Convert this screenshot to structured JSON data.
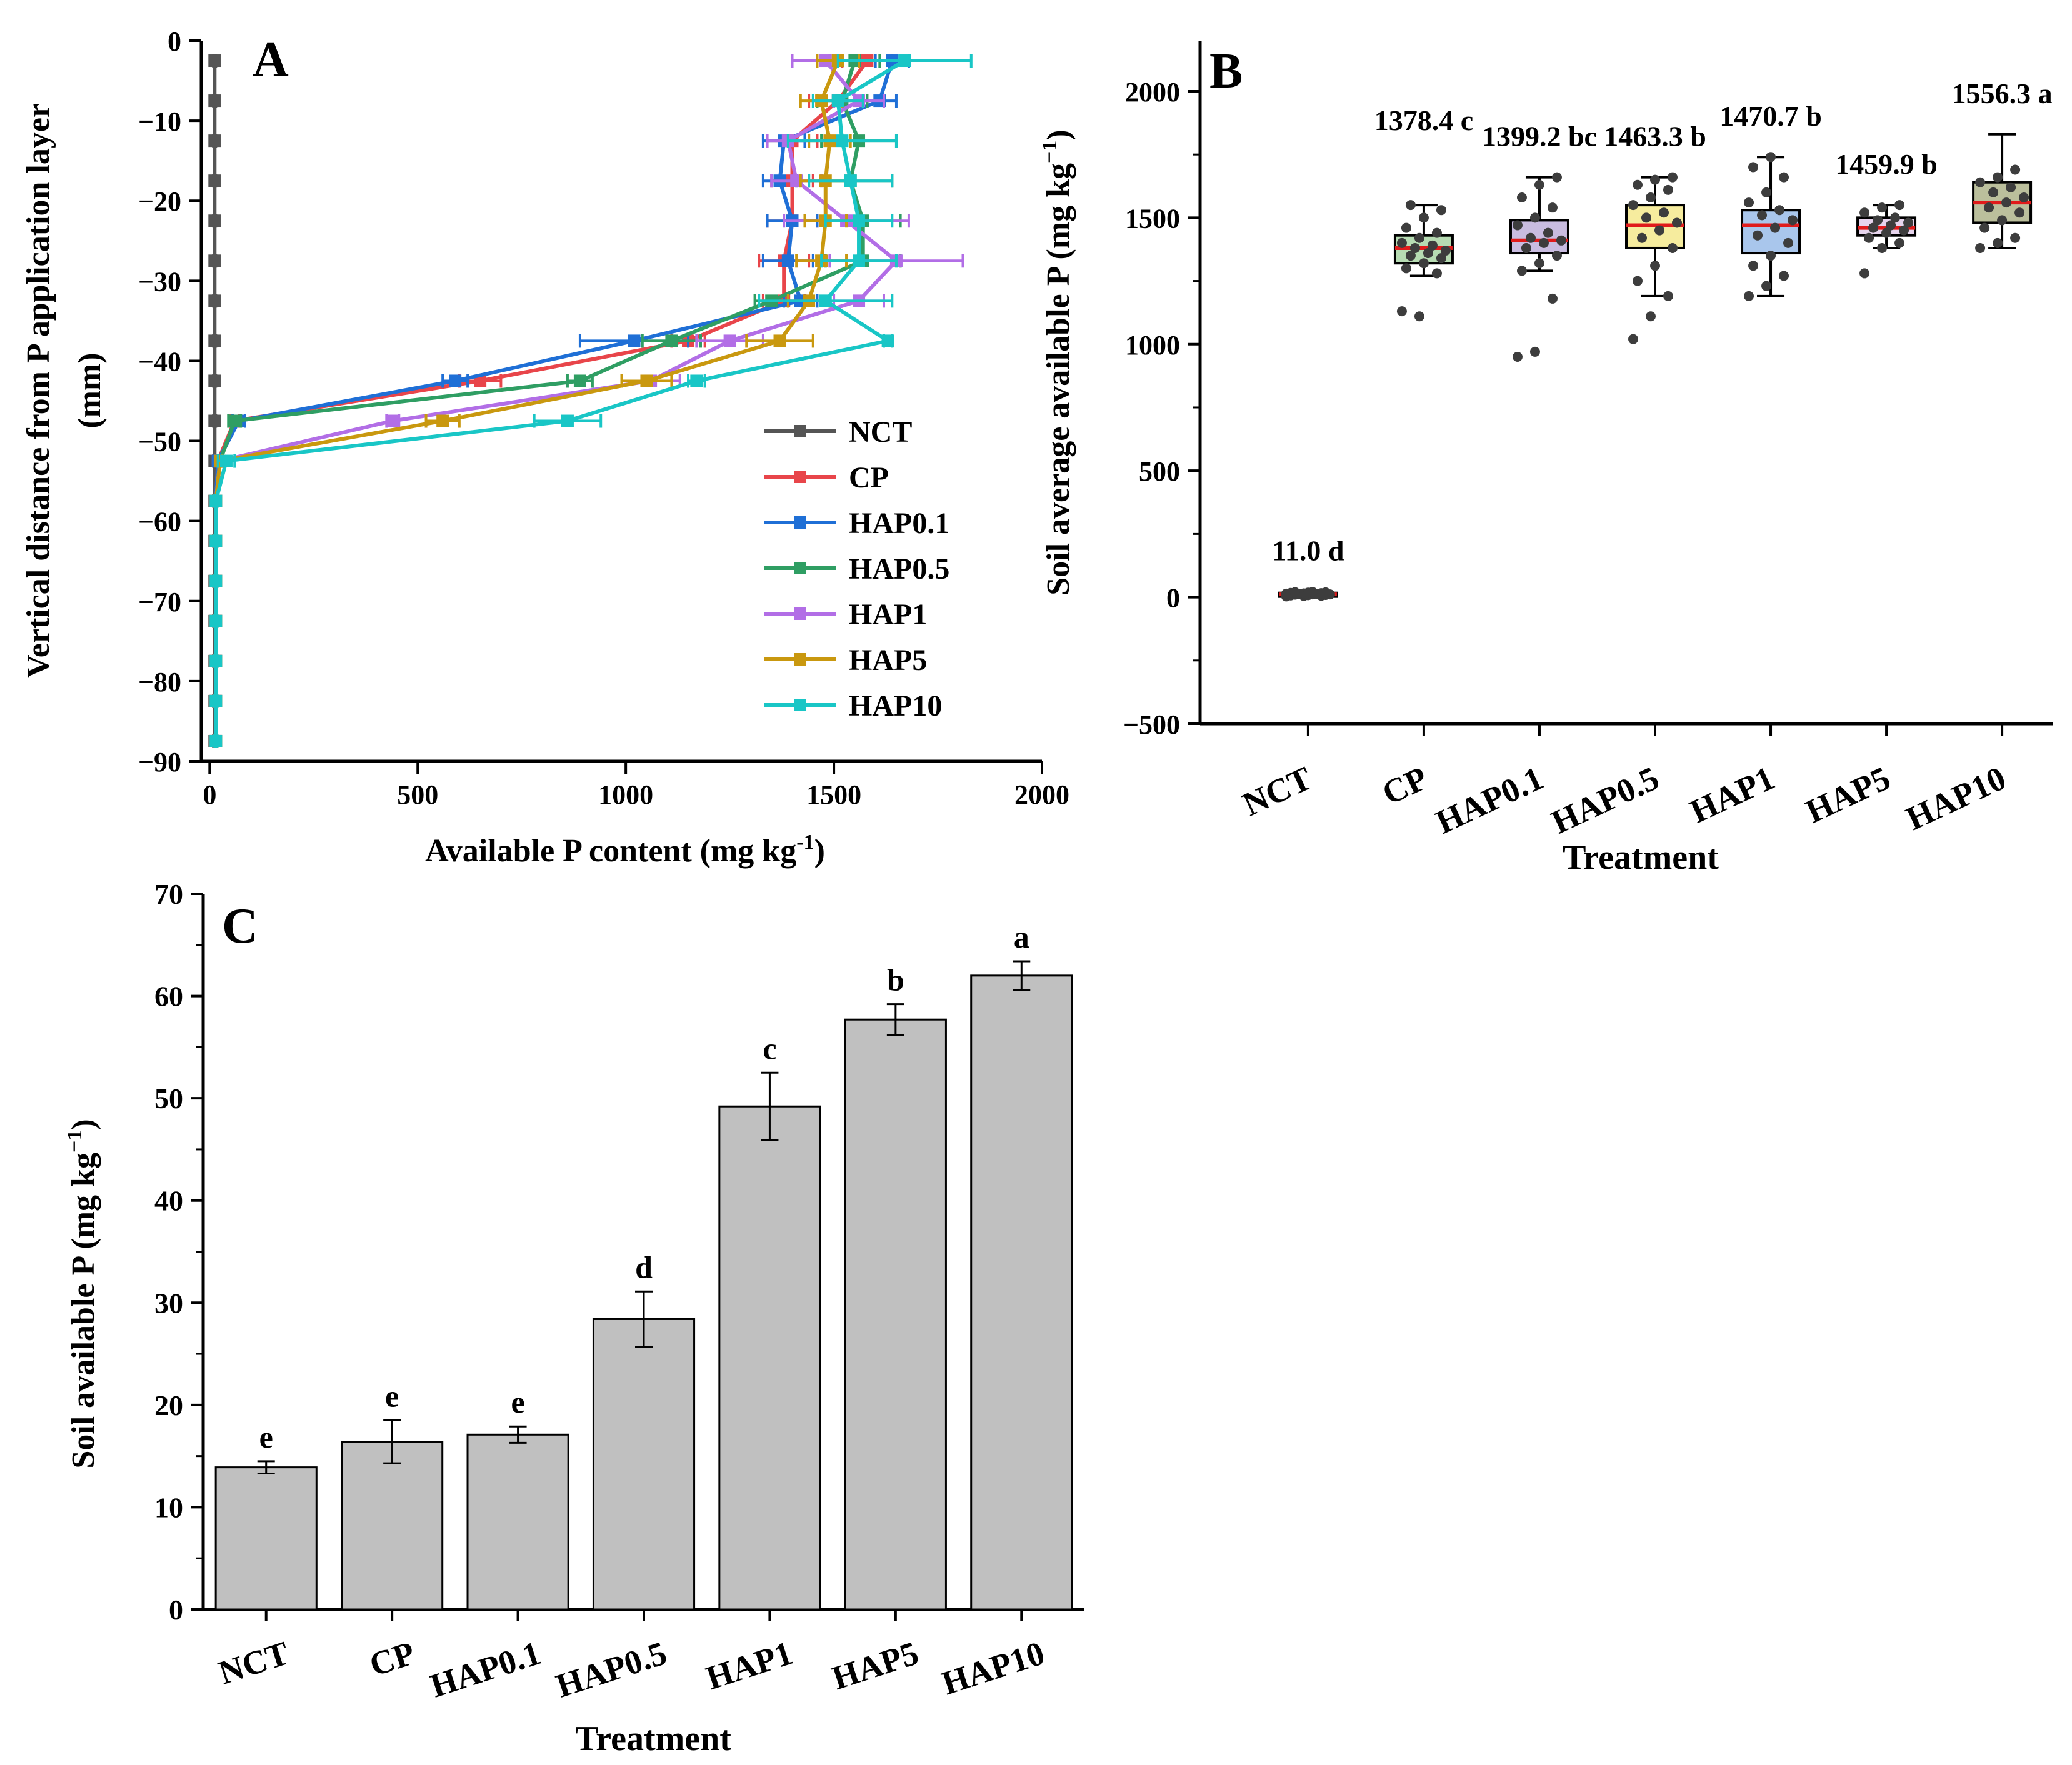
{
  "colors": {
    "NCT": "#555555",
    "CP": "#e8454a",
    "HAP0.1": "#1f6fd6",
    "HAP0.5": "#2f9e63",
    "HAP1": "#b26ee6",
    "HAP5": "#c9980f",
    "HAP10": "#19c6c6",
    "bar": "#c0c0c0",
    "median": "#e01b1b",
    "point": "#3d3d3d"
  },
  "chart_data": [
    {
      "panel": "A",
      "type": "line",
      "title": "",
      "xlabel": "Available P content (mg kg-1)",
      "xlabel_main": "Available P content (mg kg",
      "xlabel_sup": "-1",
      "xlabel_close": ")",
      "ylabel_line1": "Vertical distance from P application layer",
      "ylabel_line2": "(mm)",
      "xlim": [
        -20,
        2000
      ],
      "ylim": [
        -90,
        0
      ],
      "xticks": [
        0,
        500,
        1000,
        1500,
        2000
      ],
      "yticks": [
        0,
        -10,
        -20,
        -30,
        -40,
        -50,
        -60,
        -70,
        -80,
        -90
      ],
      "legend_position": "bottom-right",
      "depths": [
        -2.5,
        -7.5,
        -12.5,
        -17.5,
        -22.5,
        -27.5,
        -32.5,
        -37.5,
        -42.5,
        -47.5,
        -52.5,
        -57.5,
        -62.5,
        -67.5,
        -72.5,
        -77.5,
        -82.5,
        -87.5
      ],
      "series": [
        {
          "name": "NCT",
          "values": [
            12,
            12,
            12,
            12,
            12,
            12,
            12,
            12,
            12,
            12,
            12,
            12,
            12,
            12,
            12,
            12,
            12,
            12
          ],
          "errors": [
            3,
            3,
            3,
            3,
            3,
            3,
            3,
            3,
            3,
            3,
            3,
            3,
            3,
            3,
            3,
            3,
            3,
            3
          ]
        },
        {
          "name": "CP",
          "values": [
            1580,
            1510,
            1400,
            1400,
            1400,
            1380,
            1380,
            1150,
            650,
            60,
            20,
            15,
            15,
            15,
            15,
            15,
            15,
            15
          ],
          "errors": [
            60,
            70,
            60,
            50,
            60,
            60,
            50,
            40,
            50,
            10,
            5,
            3,
            3,
            3,
            3,
            3,
            3,
            3
          ]
        },
        {
          "name": "HAP0.1",
          "values": [
            1640,
            1610,
            1380,
            1370,
            1400,
            1390,
            1420,
            1020,
            590,
            70,
            20,
            15,
            15,
            15,
            15,
            15,
            15,
            15
          ],
          "errors": [
            40,
            40,
            50,
            40,
            60,
            60,
            40,
            130,
            30,
            15,
            5,
            3,
            3,
            3,
            3,
            3,
            3,
            3
          ]
        },
        {
          "name": "HAP0.5",
          "values": [
            1550,
            1520,
            1560,
            1540,
            1570,
            1570,
            1350,
            1110,
            890,
            60,
            25,
            15,
            15,
            15,
            15,
            15,
            15,
            15
          ],
          "errors": [
            60,
            60,
            90,
            100,
            90,
            90,
            40,
            70,
            30,
            15,
            5,
            3,
            3,
            3,
            3,
            3,
            3,
            3
          ]
        },
        {
          "name": "HAP1",
          "values": [
            1480,
            1560,
            1390,
            1410,
            1530,
            1650,
            1560,
            1250,
            1060,
            440,
            25,
            15,
            15,
            15,
            15,
            15,
            15,
            15
          ],
          "errors": [
            80,
            60,
            50,
            60,
            150,
            160,
            60,
            80,
            70,
            15,
            5,
            3,
            3,
            3,
            3,
            3,
            3,
            3
          ]
        },
        {
          "name": "HAP5",
          "values": [
            1510,
            1470,
            1490,
            1480,
            1480,
            1470,
            1440,
            1370,
            1050,
            560,
            25,
            15,
            15,
            15,
            15,
            15,
            15,
            15
          ],
          "errors": [
            50,
            50,
            50,
            60,
            50,
            60,
            50,
            80,
            60,
            40,
            5,
            3,
            3,
            3,
            3,
            3,
            3,
            3
          ]
        },
        {
          "name": "HAP10",
          "values": [
            1670,
            1510,
            1520,
            1540,
            1560,
            1560,
            1480,
            1630,
            1170,
            860,
            40,
            15,
            15,
            15,
            15,
            15,
            15,
            15
          ],
          "errors": [
            160,
            60,
            130,
            100,
            80,
            90,
            160,
            10,
            20,
            80,
            20,
            3,
            3,
            3,
            3,
            3,
            3,
            3
          ]
        }
      ],
      "panel_label": "A"
    },
    {
      "panel": "B",
      "type": "box",
      "title": "",
      "xlabel": "Treatment",
      "ylabel_main": "Soil average available P  (mg kg",
      "ylabel_sup": "−1",
      "ylabel_close": ")",
      "ylim": [
        -500,
        2200
      ],
      "yticks": [
        -500,
        0,
        500,
        1000,
        1500,
        2000
      ],
      "categories": [
        "NCT",
        "CP",
        "HAP0.1",
        "HAP0.5",
        "HAP1",
        "HAP5",
        "HAP10"
      ],
      "box_colors": [
        "#e8454a",
        "#b6dbb2",
        "#c9bce0",
        "#f6ec9e",
        "#a9c6ec",
        "#e6d4ec",
        "#bbbf9c"
      ],
      "boxes": [
        {
          "q1": 5,
          "median": 11,
          "mean": 11,
          "q3": 17,
          "min": 2,
          "max": 22,
          "points": [
            3,
            5,
            6,
            7,
            8,
            9,
            10,
            11,
            11,
            12,
            13,
            14,
            15,
            16,
            17,
            18,
            19,
            20,
            21
          ]
        },
        {
          "q1": 1320,
          "median": 1380,
          "mean": 1378.4,
          "q3": 1430,
          "min": 1270,
          "max": 1550,
          "points": [
            1130,
            1110,
            1280,
            1300,
            1320,
            1340,
            1350,
            1360,
            1370,
            1380,
            1390,
            1400,
            1420,
            1440,
            1460,
            1500,
            1530,
            1550
          ]
        },
        {
          "q1": 1360,
          "median": 1410,
          "mean": 1399.2,
          "q3": 1490,
          "min": 1290,
          "max": 1660,
          "points": [
            950,
            970,
            1180,
            1290,
            1320,
            1350,
            1380,
            1400,
            1410,
            1420,
            1440,
            1470,
            1500,
            1540,
            1580,
            1630,
            1660
          ]
        },
        {
          "q1": 1380,
          "median": 1470,
          "mean": 1463.3,
          "q3": 1550,
          "min": 1190,
          "max": 1660,
          "points": [
            1020,
            1110,
            1190,
            1250,
            1310,
            1380,
            1420,
            1450,
            1480,
            1500,
            1520,
            1550,
            1580,
            1610,
            1630,
            1650,
            1660
          ]
        },
        {
          "q1": 1360,
          "median": 1470,
          "mean": 1470.7,
          "q3": 1530,
          "min": 1190,
          "max": 1740,
          "points": [
            1190,
            1230,
            1270,
            1310,
            1350,
            1400,
            1430,
            1460,
            1490,
            1510,
            1530,
            1560,
            1600,
            1660,
            1700,
            1740
          ]
        },
        {
          "q1": 1430,
          "median": 1460,
          "mean": 1459.9,
          "q3": 1500,
          "min": 1380,
          "max": 1550,
          "points": [
            1280,
            1380,
            1400,
            1420,
            1440,
            1450,
            1460,
            1470,
            1480,
            1490,
            1500,
            1520,
            1540,
            1550
          ]
        },
        {
          "q1": 1480,
          "median": 1560,
          "mean": 1556.3,
          "q3": 1640,
          "min": 1380,
          "max": 1830,
          "points": [
            1380,
            1400,
            1420,
            1460,
            1490,
            1520,
            1540,
            1560,
            1580,
            1600,
            1620,
            1640,
            1660,
            1690
          ]
        }
      ],
      "annotations": [
        "11.0 d",
        "1378.4 c",
        "1399.2 bc",
        "1463.3 b",
        "1470.7 b",
        "1459.9 b",
        "1556.3 a"
      ],
      "panel_label": "B"
    },
    {
      "panel": "C",
      "type": "bar",
      "title": "",
      "xlabel": "Treatment",
      "ylabel_main": "Soil  available P  (mg kg",
      "ylabel_sup": "−1",
      "ylabel_close": ")",
      "ylim": [
        0,
        70
      ],
      "yticks": [
        0,
        10,
        20,
        30,
        40,
        50,
        60,
        70
      ],
      "categories": [
        "NCT",
        "CP",
        "HAP0.1",
        "HAP0.5",
        "HAP1",
        "HAP5",
        "HAP10"
      ],
      "values": [
        13.9,
        16.4,
        17.1,
        28.4,
        49.2,
        57.7,
        62.0
      ],
      "errors": [
        0.6,
        2.1,
        0.8,
        2.7,
        3.3,
        1.5,
        1.4
      ],
      "letters": [
        "e",
        "e",
        "e",
        "d",
        "c",
        "b",
        "a"
      ],
      "panel_label": "C"
    }
  ]
}
